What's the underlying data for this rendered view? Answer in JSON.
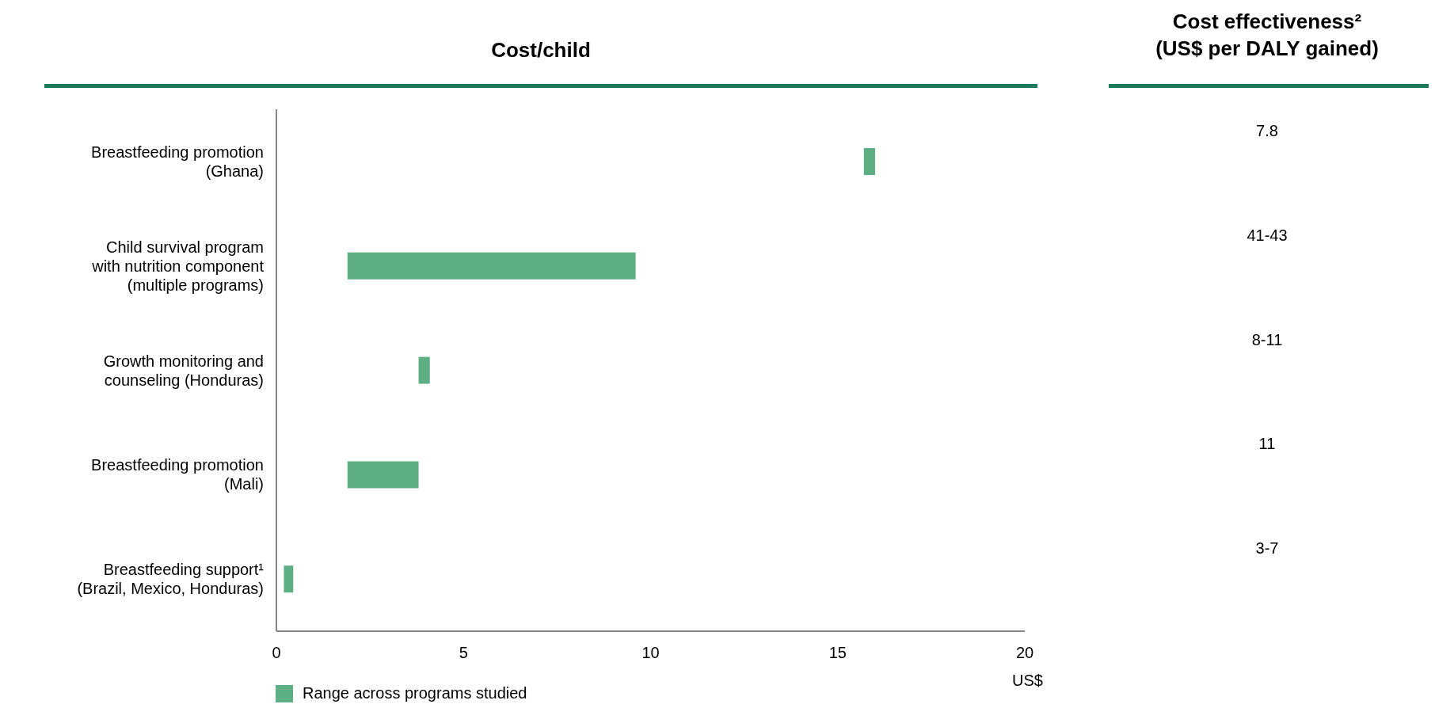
{
  "chart_data": {
    "type": "bar",
    "orientation": "horizontal",
    "title": "Cost/child",
    "xlabel": "US$",
    "categories": [
      "Breastfeeding promotion (Ghana)",
      "Child survival program with nutrition component (multiple programs)",
      "Growth monitoring and counseling (Honduras)",
      "Breastfeeding promotion (Mali)",
      "Breastfeeding support¹ (Brazil, Mexico, Honduras)"
    ],
    "series": [
      {
        "name": "Range across programs studied",
        "color": "#5daf83",
        "base": [
          15.7,
          1.9,
          3.8,
          1.9,
          0.2
        ],
        "values": [
          0.3,
          7.7,
          0.3,
          1.9,
          0.25
        ]
      }
    ],
    "xlim": [
      0,
      20
    ],
    "xticks": [
      0,
      5,
      10,
      15,
      20
    ],
    "legend": "bottom left",
    "annotations": [
      "Cost effectiveness²\n(US$ per DALY gained)",
      "7.8",
      "41-43",
      "8-11",
      "11",
      "3-7"
    ]
  }
}
